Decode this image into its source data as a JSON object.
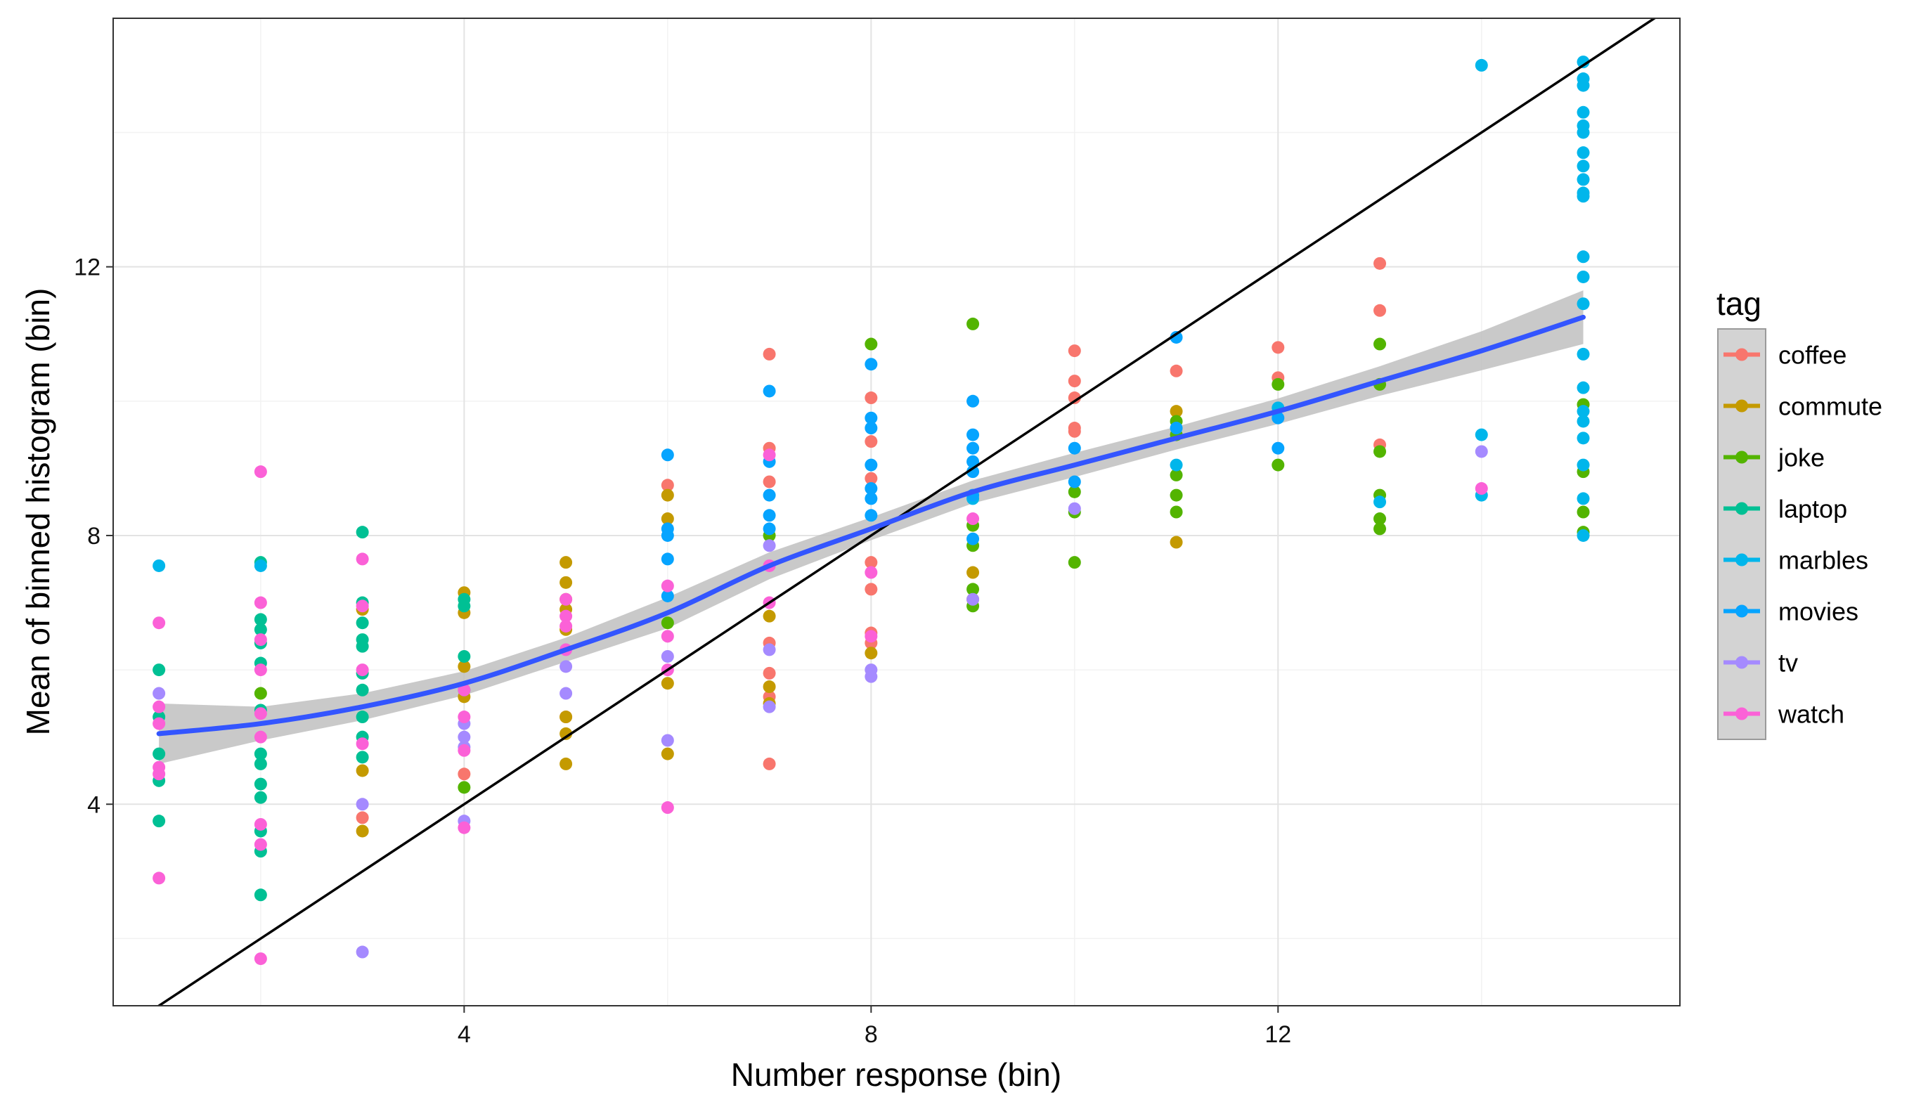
{
  "chart_data": {
    "type": "scatter",
    "xlabel": "Number response (bin)",
    "ylabel": "Mean of binned histogram (bin)",
    "xlim": [
      0.55,
      15.95
    ],
    "ylim": [
      1.0,
      15.7
    ],
    "x_ticks": [
      4,
      8,
      12
    ],
    "y_ticks": [
      4,
      8,
      12
    ],
    "x_tick_labels": [
      "4",
      "8",
      "12"
    ],
    "y_tick_labels": [
      "4",
      "8",
      "12"
    ],
    "x_minor_gridlines": [
      2,
      6,
      10,
      14
    ],
    "y_minor_gridlines": [
      2,
      6,
      10,
      14
    ],
    "grid": true,
    "legend_title": "tag",
    "legend_position": "right",
    "series": [
      {
        "name": "coffee",
        "color": "#F8766D",
        "points": [
          [
            7,
            10.7
          ],
          [
            7,
            9.3
          ],
          [
            7,
            8.8
          ],
          [
            7,
            6.4
          ],
          [
            7,
            5.95
          ],
          [
            7,
            5.6
          ],
          [
            7,
            4.6
          ],
          [
            8,
            10.05
          ],
          [
            8,
            9.4
          ],
          [
            8,
            8.85
          ],
          [
            8,
            7.6
          ],
          [
            8,
            7.2
          ],
          [
            8,
            6.55
          ],
          [
            8,
            6.4
          ],
          [
            6,
            8.75
          ],
          [
            10,
            10.75
          ],
          [
            10,
            10.3
          ],
          [
            10,
            10.05
          ],
          [
            10,
            9.6
          ],
          [
            10,
            9.55
          ],
          [
            11,
            10.45
          ],
          [
            12,
            10.8
          ],
          [
            12,
            10.35
          ],
          [
            13,
            12.05
          ],
          [
            13,
            11.35
          ],
          [
            13,
            9.35
          ],
          [
            3,
            3.8
          ],
          [
            4,
            4.45
          ],
          [
            5,
            5.3
          ]
        ]
      },
      {
        "name": "commute",
        "color": "#C49A00",
        "points": [
          [
            3,
            6.9
          ],
          [
            3,
            4.5
          ],
          [
            3,
            3.6
          ],
          [
            4,
            7.15
          ],
          [
            4,
            6.85
          ],
          [
            4,
            6.05
          ],
          [
            4,
            5.6
          ],
          [
            5,
            7.6
          ],
          [
            5,
            7.3
          ],
          [
            5,
            7.05
          ],
          [
            5,
            6.9
          ],
          [
            5,
            6.6
          ],
          [
            5,
            5.3
          ],
          [
            5,
            5.05
          ],
          [
            5,
            4.6
          ],
          [
            6,
            8.6
          ],
          [
            6,
            8.25
          ],
          [
            6,
            5.8
          ],
          [
            6,
            4.75
          ],
          [
            7,
            6.8
          ],
          [
            7,
            5.75
          ],
          [
            7,
            5.5
          ],
          [
            8,
            6.25
          ],
          [
            9,
            7.45
          ],
          [
            9,
            7.05
          ],
          [
            11,
            7.9
          ],
          [
            11,
            9.85
          ]
        ]
      },
      {
        "name": "joke",
        "color": "#53B400",
        "points": [
          [
            2,
            5.65
          ],
          [
            7,
            8.0
          ],
          [
            8,
            10.85
          ],
          [
            9,
            11.15
          ],
          [
            9,
            8.15
          ],
          [
            9,
            7.85
          ],
          [
            9,
            7.2
          ],
          [
            9,
            6.95
          ],
          [
            10,
            8.65
          ],
          [
            10,
            8.35
          ],
          [
            10,
            7.6
          ],
          [
            11,
            9.7
          ],
          [
            11,
            9.5
          ],
          [
            11,
            8.9
          ],
          [
            11,
            8.6
          ],
          [
            11,
            8.35
          ],
          [
            12,
            10.25
          ],
          [
            12,
            9.05
          ],
          [
            13,
            10.85
          ],
          [
            13,
            10.25
          ],
          [
            13,
            9.25
          ],
          [
            13,
            8.6
          ],
          [
            13,
            8.25
          ],
          [
            13,
            8.1
          ],
          [
            15,
            9.95
          ],
          [
            15,
            8.95
          ],
          [
            15,
            8.35
          ],
          [
            15,
            8.05
          ],
          [
            4,
            4.25
          ],
          [
            6,
            6.7
          ]
        ]
      },
      {
        "name": "laptop",
        "color": "#00C094",
        "points": [
          [
            1,
            6.0
          ],
          [
            1,
            5.3
          ],
          [
            1,
            4.75
          ],
          [
            1,
            4.35
          ],
          [
            1,
            3.75
          ],
          [
            2,
            7.6
          ],
          [
            2,
            6.75
          ],
          [
            2,
            6.6
          ],
          [
            2,
            6.4
          ],
          [
            2,
            6.1
          ],
          [
            2,
            5.4
          ],
          [
            2,
            4.75
          ],
          [
            2,
            4.6
          ],
          [
            2,
            4.3
          ],
          [
            2,
            4.1
          ],
          [
            2,
            3.6
          ],
          [
            2,
            3.3
          ],
          [
            2,
            2.65
          ],
          [
            3,
            8.05
          ],
          [
            3,
            7.0
          ],
          [
            3,
            6.7
          ],
          [
            3,
            6.45
          ],
          [
            3,
            6.35
          ],
          [
            3,
            5.95
          ],
          [
            3,
            5.7
          ],
          [
            3,
            5.3
          ],
          [
            3,
            5.0
          ],
          [
            3,
            4.7
          ],
          [
            4,
            7.05
          ],
          [
            4,
            6.95
          ],
          [
            4,
            6.2
          ],
          [
            4,
            5.7
          ]
        ]
      },
      {
        "name": "marbles",
        "color": "#00B6EB",
        "points": [
          [
            1,
            7.55
          ],
          [
            2,
            7.55
          ],
          [
            9,
            8.55
          ],
          [
            11,
            9.05
          ],
          [
            12,
            9.9
          ],
          [
            13,
            8.5
          ],
          [
            14,
            15.0
          ],
          [
            14,
            9.5
          ],
          [
            14,
            8.6
          ],
          [
            15,
            15.05
          ],
          [
            15,
            14.8
          ],
          [
            15,
            14.7
          ],
          [
            15,
            14.3
          ],
          [
            15,
            14.1
          ],
          [
            15,
            14.0
          ],
          [
            15,
            13.7
          ],
          [
            15,
            13.5
          ],
          [
            15,
            13.3
          ],
          [
            15,
            13.1
          ],
          [
            15,
            13.05
          ],
          [
            15,
            12.15
          ],
          [
            15,
            11.85
          ],
          [
            15,
            11.45
          ],
          [
            15,
            10.7
          ],
          [
            15,
            10.2
          ],
          [
            15,
            9.85
          ],
          [
            15,
            9.7
          ],
          [
            15,
            9.45
          ],
          [
            15,
            9.05
          ],
          [
            15,
            8.55
          ],
          [
            15,
            8.0
          ]
        ]
      },
      {
        "name": "movies",
        "color": "#06A4FF",
        "points": [
          [
            6,
            9.2
          ],
          [
            6,
            8.1
          ],
          [
            6,
            8.0
          ],
          [
            6,
            7.65
          ],
          [
            6,
            7.1
          ],
          [
            7,
            10.15
          ],
          [
            7,
            9.1
          ],
          [
            7,
            8.6
          ],
          [
            7,
            8.3
          ],
          [
            7,
            8.1
          ],
          [
            8,
            10.55
          ],
          [
            8,
            9.75
          ],
          [
            8,
            9.6
          ],
          [
            8,
            9.05
          ],
          [
            8,
            8.7
          ],
          [
            8,
            8.55
          ],
          [
            8,
            8.3
          ],
          [
            9,
            10.0
          ],
          [
            9,
            9.5
          ],
          [
            9,
            9.3
          ],
          [
            9,
            9.1
          ],
          [
            9,
            8.95
          ],
          [
            9,
            8.6
          ],
          [
            9,
            7.95
          ],
          [
            10,
            9.3
          ],
          [
            10,
            8.8
          ],
          [
            11,
            10.95
          ],
          [
            11,
            9.6
          ],
          [
            12,
            9.75
          ],
          [
            12,
            9.3
          ]
        ]
      },
      {
        "name": "tv",
        "color": "#A58AFF",
        "points": [
          [
            1,
            5.65
          ],
          [
            3,
            4.0
          ],
          [
            3,
            1.8
          ],
          [
            4,
            5.2
          ],
          [
            4,
            5.0
          ],
          [
            4,
            4.85
          ],
          [
            4,
            3.75
          ],
          [
            5,
            6.05
          ],
          [
            5,
            5.65
          ],
          [
            6,
            4.95
          ],
          [
            6,
            6.2
          ],
          [
            7,
            7.85
          ],
          [
            7,
            6.3
          ],
          [
            7,
            5.45
          ],
          [
            8,
            6.0
          ],
          [
            8,
            5.9
          ],
          [
            9,
            7.05
          ],
          [
            10,
            8.4
          ],
          [
            14,
            9.25
          ]
        ]
      },
      {
        "name": "watch",
        "color": "#FB61D7",
        "points": [
          [
            1,
            6.7
          ],
          [
            1,
            5.45
          ],
          [
            1,
            5.2
          ],
          [
            1,
            4.55
          ],
          [
            1,
            4.45
          ],
          [
            1,
            2.9
          ],
          [
            2,
            8.95
          ],
          [
            2,
            7.0
          ],
          [
            2,
            6.45
          ],
          [
            2,
            6.0
          ],
          [
            2,
            5.35
          ],
          [
            2,
            5.0
          ],
          [
            2,
            3.7
          ],
          [
            2,
            3.4
          ],
          [
            2,
            1.7
          ],
          [
            3,
            7.65
          ],
          [
            3,
            6.95
          ],
          [
            3,
            6.0
          ],
          [
            3,
            4.9
          ],
          [
            4,
            5.7
          ],
          [
            4,
            5.3
          ],
          [
            4,
            4.8
          ],
          [
            4,
            3.65
          ],
          [
            5,
            7.05
          ],
          [
            5,
            6.8
          ],
          [
            5,
            6.65
          ],
          [
            5,
            6.3
          ],
          [
            6,
            7.25
          ],
          [
            6,
            6.5
          ],
          [
            6,
            6.0
          ],
          [
            6,
            3.95
          ],
          [
            7,
            9.2
          ],
          [
            7,
            7.55
          ],
          [
            7,
            7.0
          ],
          [
            8,
            7.45
          ],
          [
            8,
            6.5
          ],
          [
            9,
            8.25
          ],
          [
            14,
            8.7
          ]
        ]
      }
    ],
    "smooth_curve": {
      "color": "#3355FF",
      "band_color": "#BFBFBF",
      "x": [
        1,
        2,
        3,
        4,
        5,
        6,
        7,
        8,
        9,
        10,
        11,
        12,
        13,
        14,
        15
      ],
      "y": [
        5.05,
        5.2,
        5.45,
        5.8,
        6.3,
        6.85,
        7.55,
        8.1,
        8.65,
        9.05,
        9.45,
        9.85,
        10.3,
        10.75,
        11.25
      ],
      "lower": [
        4.6,
        4.95,
        5.25,
        5.62,
        6.12,
        6.62,
        7.35,
        7.93,
        8.48,
        8.87,
        9.28,
        9.66,
        10.08,
        10.46,
        10.85
      ],
      "upper": [
        5.5,
        5.45,
        5.65,
        5.98,
        6.48,
        7.08,
        7.75,
        8.27,
        8.82,
        9.23,
        9.62,
        10.04,
        10.52,
        11.04,
        11.65
      ]
    },
    "reference_line": {
      "slope": 1,
      "intercept": 0,
      "color": "#000000"
    }
  }
}
